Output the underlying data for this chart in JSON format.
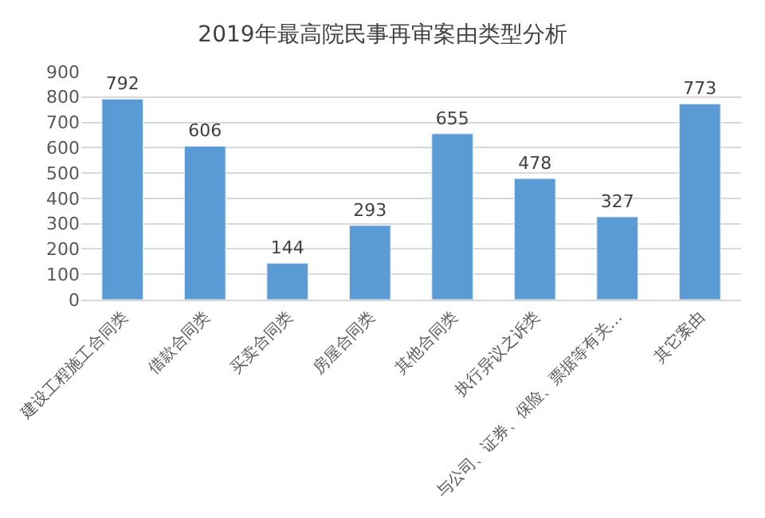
{
  "chart_data": {
    "type": "bar",
    "title": "2019年最高院民事再审案由类型分析",
    "categories": [
      "建设工程施工合同类",
      "借款合同类",
      "买卖合同类",
      "房屋合同类",
      "其他合同类",
      "执行异议之诉类",
      "与公司、证券、保险、票据等有关…",
      "其它案由"
    ],
    "values": [
      792,
      606,
      144,
      293,
      655,
      478,
      327,
      773
    ],
    "color": "#5b9bd5",
    "ylim": [
      0,
      900
    ],
    "yticks": [
      0,
      100,
      200,
      300,
      400,
      500,
      600,
      700,
      800,
      900
    ],
    "grid": "y",
    "data_labels": true,
    "legend": false
  }
}
